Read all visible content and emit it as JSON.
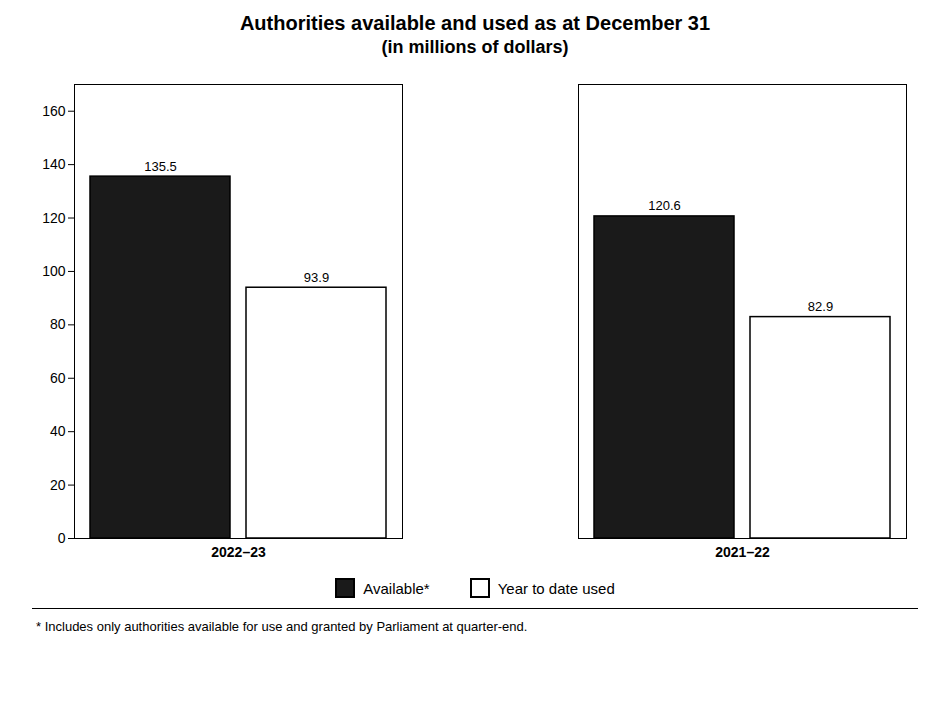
{
  "chart_data": {
    "type": "bar",
    "title": "Authorities available and used as at December 31",
    "subtitle": "(in millions of dollars)",
    "categories": [
      "2022–23",
      "2021–22"
    ],
    "series": [
      {
        "name": "Available*",
        "color": "#1a1a1a",
        "values": [
          135.5,
          120.6
        ]
      },
      {
        "name": "Year to date used",
        "color": "#ffffff",
        "values": [
          93.9,
          82.9
        ]
      }
    ],
    "ylim": [
      0,
      170
    ],
    "yticks": [
      0,
      20,
      40,
      60,
      80,
      100,
      120,
      140,
      160
    ],
    "grid": false,
    "legend": "bottom",
    "data_labels": true,
    "footnote": "* Includes only authorities available for use and granted by Parliament at quarter-end."
  }
}
